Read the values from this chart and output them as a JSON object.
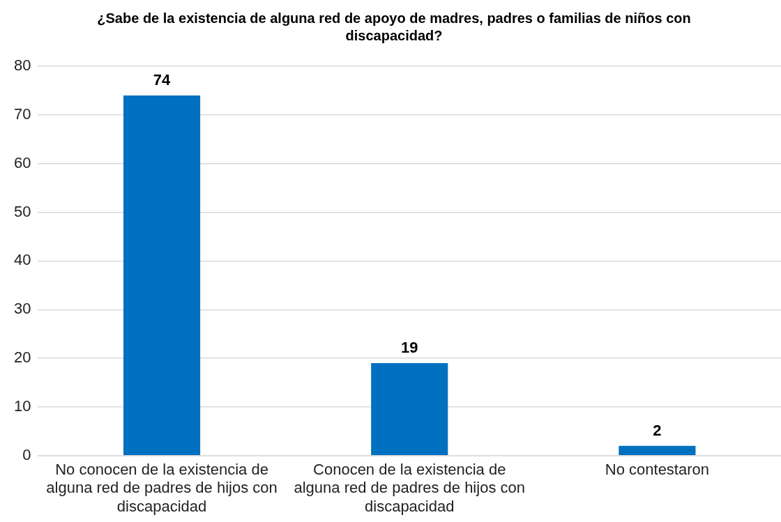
{
  "chart_data": {
    "type": "bar",
    "title": "¿Sabe de la existencia de alguna red de apoyo de madres, padres o familias de niños con discapacidad?",
    "categories": [
      "No conocen de la existencia de alguna red de padres de hijos con discapacidad",
      "Conocen de la existencia de alguna red de padres de hijos con discapacidad",
      "No contestaron"
    ],
    "values": [
      74,
      19,
      2
    ],
    "color": "#0070c0",
    "ylim": [
      0,
      80
    ],
    "yticks": [
      0,
      10,
      20,
      30,
      40,
      50,
      60,
      70,
      80
    ],
    "grid": "y",
    "data_labels": true
  }
}
